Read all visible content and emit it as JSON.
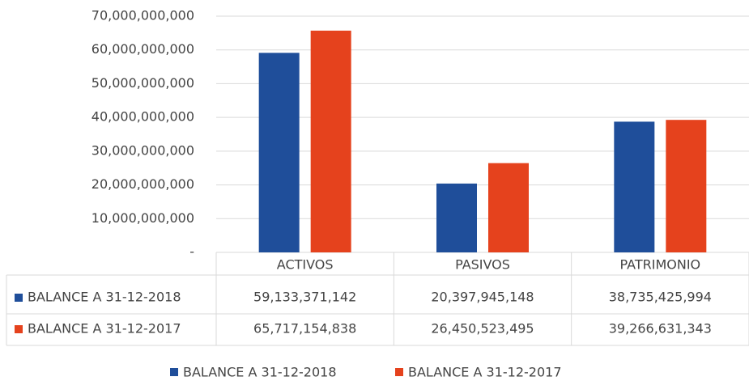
{
  "chart_data": {
    "type": "bar",
    "categories": [
      "ACTIVOS",
      "PASIVOS",
      "PATRIMONIO"
    ],
    "series": [
      {
        "name": "BALANCE A 31-12-2018",
        "color": "#1f4e9a",
        "values": [
          59133371142,
          20397945148,
          38735425994
        ],
        "value_labels": [
          "59,133,371,142",
          "20,397,945,148",
          "38,735,425,994"
        ]
      },
      {
        "name": "BALANCE A 31-12-2017",
        "color": "#e5421d",
        "values": [
          65717154838,
          26450523495,
          39266631343
        ],
        "value_labels": [
          "65,717,154,838",
          "26,450,523,495",
          "39,266,631,343"
        ]
      }
    ],
    "ylim": [
      0,
      70000000000
    ],
    "yticks": [
      {
        "value": 0,
        "label": "-"
      },
      {
        "value": 10000000000,
        "label": "10,000,000,000"
      },
      {
        "value": 20000000000,
        "label": "20,000,000,000"
      },
      {
        "value": 30000000000,
        "label": "30,000,000,000"
      },
      {
        "value": 40000000000,
        "label": "40,000,000,000"
      },
      {
        "value": 50000000000,
        "label": "50,000,000,000"
      },
      {
        "value": 60000000000,
        "label": "60,000,000,000"
      },
      {
        "value": 70000000000,
        "label": "70,000,000,000"
      }
    ],
    "grid": true,
    "legend": "bottom"
  }
}
